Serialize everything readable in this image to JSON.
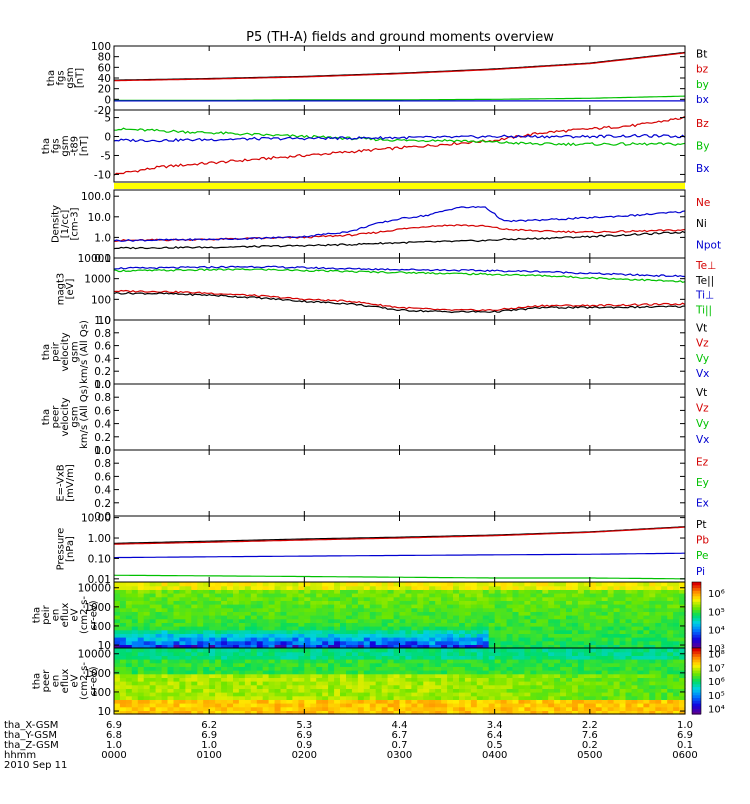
{
  "page": {
    "title": "P5 (TH-A) fields and ground moments overview",
    "footer": {
      "row_labels": [
        "tha_X-GSM",
        "tha_Y-GSM",
        "tha_Z-GSM",
        "hhmm",
        "2010 Sep 11"
      ],
      "columns": [
        {
          "x": "6.9",
          "y": "6.8",
          "z": "1.0",
          "time": "0000"
        },
        {
          "x": "6.2",
          "y": "6.9",
          "z": "1.0",
          "time": "0100"
        },
        {
          "x": "5.3",
          "y": "6.9",
          "z": "0.9",
          "time": "0200"
        },
        {
          "x": "4.4",
          "y": "6.7",
          "z": "0.7",
          "time": "0300"
        },
        {
          "x": "3.4",
          "y": "6.4",
          "z": "0.5",
          "time": "0400"
        },
        {
          "x": "2.2",
          "y": "7.6",
          "z": "0.2",
          "time": "0500"
        },
        {
          "x": "1.0",
          "y": "6.9",
          "z": "0.1",
          "time": "0600"
        }
      ]
    }
  },
  "chart_data": [
    {
      "id": "fgs",
      "type": "line",
      "ylabel": [
        "tha",
        "fgs",
        "gsm",
        "[nT]"
      ],
      "ylim": [
        -20,
        100
      ],
      "ticks": [
        {
          "v": 100,
          "t": "100"
        },
        {
          "v": 80,
          "t": "80"
        },
        {
          "v": 60,
          "t": "60"
        },
        {
          "v": 40,
          "t": "40"
        },
        {
          "v": 20,
          "t": "20"
        },
        {
          "v": 0,
          "t": "0"
        },
        {
          "v": -20,
          "t": "-20"
        }
      ],
      "x": [
        0,
        1,
        2,
        3,
        4,
        5,
        6
      ],
      "series": [
        {
          "name": "Bt",
          "color": "#000000",
          "values": [
            36,
            39,
            43,
            49,
            57,
            68,
            88
          ]
        },
        {
          "name": "bz",
          "color": "#d40000",
          "values": [
            35,
            38,
            42,
            48,
            56,
            67,
            87
          ]
        },
        {
          "name": "by",
          "color": "#00c000",
          "values": [
            -2,
            -2,
            -1,
            -1,
            0,
            2,
            6
          ]
        },
        {
          "name": "bx",
          "color": "#0000d0",
          "values": [
            -3,
            -3,
            -3,
            -3,
            -3,
            -3,
            -3
          ]
        }
      ]
    },
    {
      "id": "fgs_dsl",
      "type": "line",
      "ylabel": [
        "tha",
        "fgs",
        "gsm",
        "-t89",
        "[nT]"
      ],
      "ylim": [
        -12,
        7
      ],
      "ticks": [
        {
          "v": 5,
          "t": "5"
        },
        {
          "v": 0,
          "t": "0"
        },
        {
          "v": -5,
          "t": "-5"
        },
        {
          "v": -10,
          "t": "-10"
        }
      ],
      "x": [
        0,
        0.5,
        1,
        1.5,
        2,
        2.5,
        3,
        3.5,
        4,
        4.5,
        5,
        5.5,
        6
      ],
      "series": [
        {
          "name": "Bz",
          "color": "#d40000",
          "values": [
            -10,
            -8,
            -7,
            -6,
            -5,
            -4,
            -3,
            -2,
            -1,
            1,
            2,
            3,
            5
          ]
        },
        {
          "name": "By",
          "color": "#00c000",
          "values": [
            2,
            1.5,
            1,
            0.5,
            0,
            -0.5,
            -1,
            -1,
            -1.5,
            -2,
            -2,
            -2,
            -2
          ]
        },
        {
          "name": "Bx",
          "color": "#0000d0",
          "values": [
            -1,
            -1,
            -0.8,
            -0.6,
            -0.5,
            -0.4,
            -0.3,
            -0.2,
            0,
            0,
            0,
            0.2,
            0
          ]
        }
      ]
    },
    {
      "id": "density",
      "type": "line",
      "scale": "log",
      "ylabel": [
        "Density",
        "[1/cc]",
        "[cm-3]"
      ],
      "ylim": [
        0.1,
        200
      ],
      "ticks": [
        {
          "v": 100,
          "t": "100.0"
        },
        {
          "v": 10,
          "t": "10.0"
        },
        {
          "v": 1,
          "t": "1.0"
        },
        {
          "v": 0.1,
          "t": "0.1"
        }
      ],
      "x": [
        0,
        0.5,
        1,
        1.5,
        2,
        2.5,
        2.7,
        3,
        3.3,
        3.6,
        3.9,
        4.1,
        4.5,
        5,
        5.5,
        6
      ],
      "series": [
        {
          "name": "Ne",
          "color": "#d40000",
          "values": [
            0.7,
            0.75,
            0.8,
            0.9,
            1,
            1.3,
            1.6,
            2.5,
            3.5,
            4,
            3.5,
            2.5,
            2,
            1.8,
            2,
            2.3
          ]
        },
        {
          "name": "Ni",
          "color": "#000000",
          "values": [
            0.3,
            0.32,
            0.33,
            0.36,
            0.4,
            0.45,
            0.5,
            0.55,
            0.6,
            0.65,
            0.7,
            0.8,
            0.9,
            1.1,
            1.4,
            1.8
          ]
        },
        {
          "name": "Npot",
          "color": "#0000d0",
          "values": [
            0.7,
            0.75,
            0.8,
            0.9,
            1.1,
            2,
            4,
            8,
            12,
            28,
            30,
            6,
            7,
            9,
            12,
            18
          ]
        }
      ]
    },
    {
      "id": "temperature",
      "type": "line",
      "scale": "log",
      "ylabel": [
        "magt3",
        "[eV]"
      ],
      "ylim": [
        10,
        10000
      ],
      "ticks": [
        {
          "v": 10000,
          "t": "10000"
        },
        {
          "v": 1000,
          "t": "1000"
        },
        {
          "v": 100,
          "t": "100"
        },
        {
          "v": 10,
          "t": "10"
        }
      ],
      "x": [
        0,
        0.5,
        1,
        1.5,
        2,
        2.5,
        3,
        3.5,
        4,
        4.5,
        5,
        5.5,
        6
      ],
      "series": [
        {
          "name": "Te⊥",
          "color": "#d40000",
          "values": [
            250,
            240,
            200,
            150,
            100,
            80,
            40,
            30,
            30,
            50,
            50,
            55,
            60
          ]
        },
        {
          "name": "Te||",
          "color": "#000000",
          "values": [
            200,
            190,
            160,
            120,
            80,
            60,
            30,
            25,
            25,
            40,
            40,
            42,
            45
          ]
        },
        {
          "name": "Ti⊥",
          "color": "#0000d0",
          "values": [
            3200,
            3300,
            3600,
            3800,
            3400,
            3000,
            2800,
            2600,
            2400,
            2200,
            1800,
            1500,
            1300
          ]
        },
        {
          "name": "Ti||",
          "color": "#00c000",
          "values": [
            2400,
            2500,
            2700,
            2800,
            2500,
            2200,
            2000,
            1800,
            1600,
            1400,
            1100,
            900,
            700
          ]
        }
      ]
    },
    {
      "id": "peir_velocity",
      "type": "line",
      "ylabel": [
        "tha",
        "peir",
        "velocity",
        "gsm",
        "km/s (All Qs)"
      ],
      "ylim": [
        0,
        1
      ],
      "ticks": [
        {
          "v": 1,
          "t": "1.0"
        },
        {
          "v": 0.8,
          "t": "0.8"
        },
        {
          "v": 0.6,
          "t": "0.6"
        },
        {
          "v": 0.4,
          "t": "0.4"
        },
        {
          "v": 0.2,
          "t": "0.2"
        },
        {
          "v": 0,
          "t": "0.0"
        }
      ],
      "series": [
        {
          "name": "Vt",
          "color": "#000000",
          "values": []
        },
        {
          "name": "Vz",
          "color": "#d40000",
          "values": []
        },
        {
          "name": "Vy",
          "color": "#00c000",
          "values": []
        },
        {
          "name": "Vx",
          "color": "#0000d0",
          "values": []
        }
      ]
    },
    {
      "id": "peer_velocity",
      "type": "line",
      "ylabel": [
        "tha",
        "peer",
        "velocity",
        "gsm",
        "km/s (All Qs)"
      ],
      "ylim": [
        0,
        1
      ],
      "ticks": [
        {
          "v": 1,
          "t": "1.0"
        },
        {
          "v": 0.8,
          "t": "0.8"
        },
        {
          "v": 0.6,
          "t": "0.6"
        },
        {
          "v": 0.4,
          "t": "0.4"
        },
        {
          "v": 0.2,
          "t": "0.2"
        },
        {
          "v": 0,
          "t": "0.0"
        }
      ],
      "series": [
        {
          "name": "Vt",
          "color": "#000000",
          "values": []
        },
        {
          "name": "Vz",
          "color": "#d40000",
          "values": []
        },
        {
          "name": "Vy",
          "color": "#00c000",
          "values": []
        },
        {
          "name": "Vx",
          "color": "#0000d0",
          "values": []
        }
      ]
    },
    {
      "id": "efield",
      "type": "line",
      "ylabel": [
        "E=-VxB",
        "[mV/m]"
      ],
      "ylim": [
        0,
        1
      ],
      "ticks": [
        {
          "v": 1,
          "t": "1.0"
        },
        {
          "v": 0.8,
          "t": "0.8"
        },
        {
          "v": 0.6,
          "t": "0.6"
        },
        {
          "v": 0.4,
          "t": "0.4"
        },
        {
          "v": 0.2,
          "t": "0.2"
        },
        {
          "v": 0,
          "t": "0.0"
        }
      ],
      "series": [
        {
          "name": "Ez",
          "color": "#d40000",
          "values": []
        },
        {
          "name": "Ey",
          "color": "#00c000",
          "values": []
        },
        {
          "name": "Ex",
          "color": "#0000d0",
          "values": []
        }
      ]
    },
    {
      "id": "pressure",
      "type": "line",
      "scale": "log",
      "ylabel": [
        "Pressure",
        "[nPa]"
      ],
      "ylim": [
        0.007,
        12
      ],
      "ticks": [
        {
          "v": 10,
          "t": "10.00"
        },
        {
          "v": 1,
          "t": "1.00"
        },
        {
          "v": 0.1,
          "t": "0.10"
        },
        {
          "v": 0.01,
          "t": "0.01"
        }
      ],
      "x": [
        0,
        1,
        2,
        3,
        4,
        5,
        6
      ],
      "series": [
        {
          "name": "Pt",
          "color": "#000000",
          "values": [
            0.55,
            0.7,
            0.9,
            1.1,
            1.4,
            2.0,
            3.6
          ]
        },
        {
          "name": "Pb",
          "color": "#d40000",
          "values": [
            0.5,
            0.62,
            0.8,
            1.0,
            1.3,
            1.9,
            3.4
          ]
        },
        {
          "name": "Pe",
          "color": "#00c000",
          "values": [
            0.015,
            0.014,
            0.013,
            0.012,
            0.011,
            0.011,
            0.01
          ]
        },
        {
          "name": "Pi",
          "color": "#0000d0",
          "values": [
            0.11,
            0.12,
            0.13,
            0.14,
            0.15,
            0.16,
            0.18
          ]
        }
      ]
    },
    {
      "id": "peir_spectrogram",
      "type": "heatmap",
      "ylabel": [
        "tha",
        "peir",
        "en",
        "eflux",
        "eV",
        "(cm2-s-",
        "sr-eV)"
      ],
      "ylim": [
        7,
        20000
      ],
      "ticks": [
        {
          "v": 10000,
          "t": "10000"
        },
        {
          "v": 1000,
          "t": "1000"
        },
        {
          "v": 100,
          "t": "100"
        },
        {
          "v": 10,
          "t": "10"
        }
      ],
      "colorbar": {
        "min_exp": 3,
        "max_exp": 6.6,
        "labels": [
          {
            "v": 6,
            "t": "10⁶"
          },
          {
            "v": 5,
            "t": "10⁵"
          },
          {
            "v": 4,
            "t": "10⁴"
          },
          {
            "v": 3,
            "t": "10³"
          }
        ]
      }
    },
    {
      "id": "peer_spectrogram",
      "type": "heatmap",
      "ylabel": [
        "tha",
        "peer",
        "en",
        "eflux",
        "eV",
        "(cm2-s-",
        "sr-eV)"
      ],
      "ylim": [
        7,
        20000
      ],
      "ticks": [
        {
          "v": 10000,
          "t": "10000"
        },
        {
          "v": 1000,
          "t": "1000"
        },
        {
          "v": 100,
          "t": "100"
        },
        {
          "v": 10,
          "t": "10"
        }
      ],
      "colorbar": {
        "min_exp": 3.6,
        "max_exp": 8.4,
        "labels": [
          {
            "v": 8,
            "t": "10⁸"
          },
          {
            "v": 7,
            "t": "10⁷"
          },
          {
            "v": 6,
            "t": "10⁶"
          },
          {
            "v": 5,
            "t": "10⁵"
          },
          {
            "v": 4,
            "t": "10⁴"
          }
        ]
      }
    }
  ]
}
